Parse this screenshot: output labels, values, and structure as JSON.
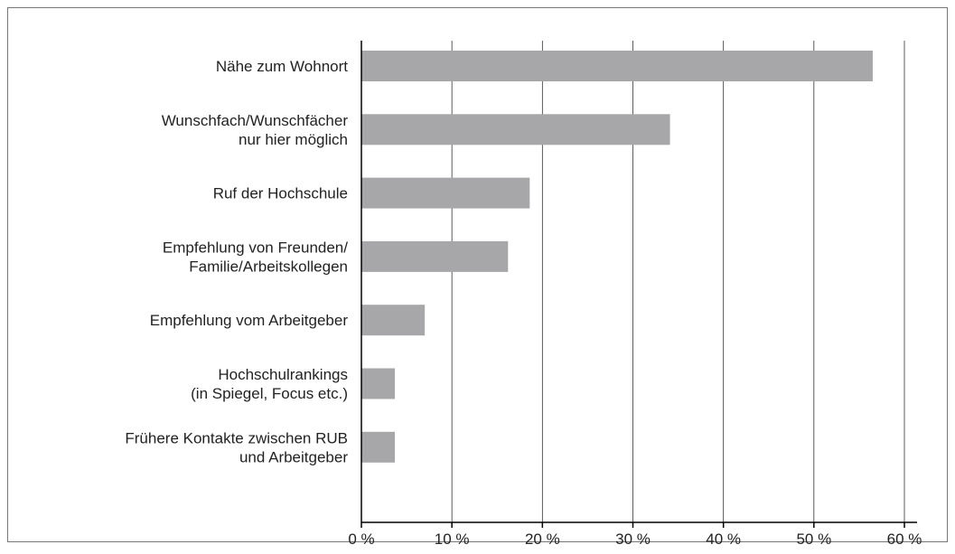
{
  "chart_data": {
    "type": "bar",
    "orientation": "horizontal",
    "categories": [
      "Nähe zum Wohnort",
      "Wunschfach/Wunschfächer\nnur hier möglich",
      "Ruf der Hochschule",
      "Empfehlung von Freunden/\nFamilie/Arbeitskollegen",
      "Empfehlung vom Arbeitgeber",
      "Hochschulrankings\n(in Spiegel, Focus etc.)",
      "Frühere Kontakte zwischen RUB\nund Arbeitgeber"
    ],
    "values": [
      56.5,
      34.1,
      18.6,
      16.2,
      7.0,
      3.7,
      3.7
    ],
    "color": "#a7a7a9",
    "xlim": [
      0,
      60
    ],
    "xticks": [
      {
        "value": 0,
        "label": "0 %"
      },
      {
        "value": 10,
        "label": "10 %"
      },
      {
        "value": 20,
        "label": "20 %"
      },
      {
        "value": 30,
        "label": "30 %"
      },
      {
        "value": 40,
        "label": "40 %"
      },
      {
        "value": 50,
        "label": "50 %"
      },
      {
        "value": 60,
        "label": "60 %"
      }
    ],
    "grid": true
  }
}
